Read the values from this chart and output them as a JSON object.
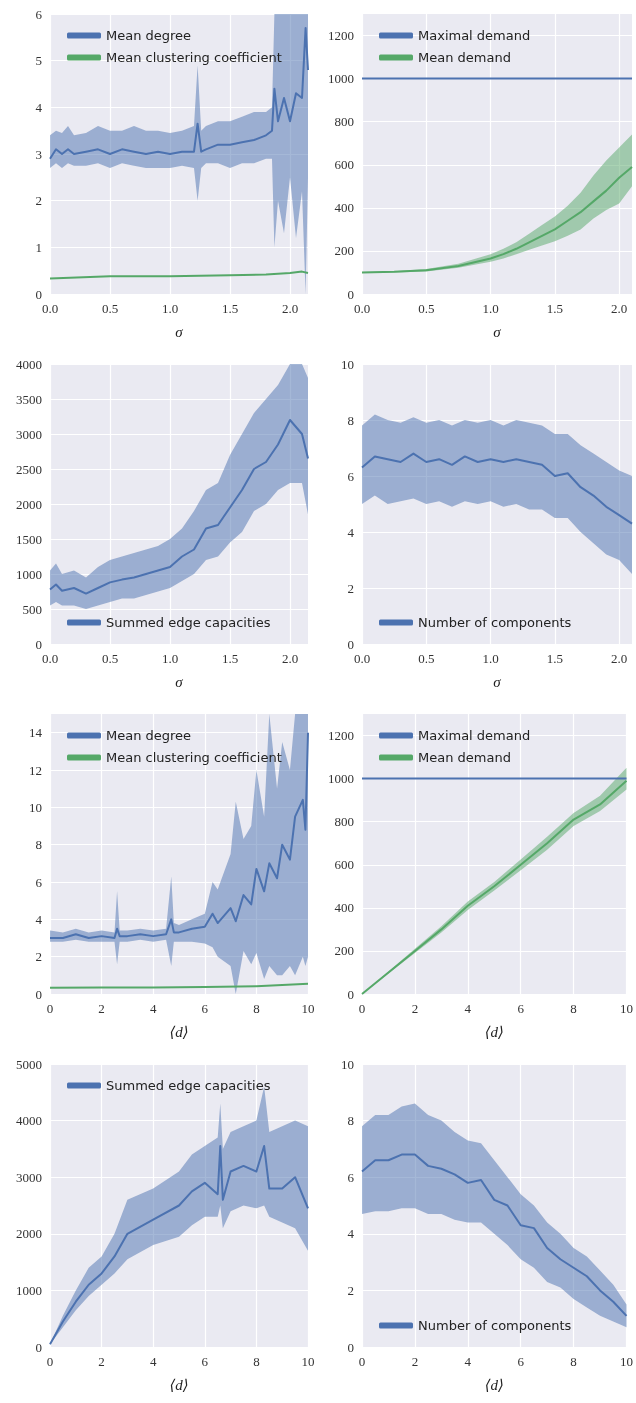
{
  "chart_data": [
    {
      "type": "line",
      "xlabel": "σ",
      "xlim": [
        0,
        2.15
      ],
      "xticks": [
        {
          "value": 0,
          "label": "0.0"
        },
        0.5,
        {
          "value": 1,
          "label": "1.0"
        },
        1.5,
        {
          "value": 2,
          "label": "2.0"
        }
      ],
      "ylim": [
        0,
        6
      ],
      "yticks": [
        0,
        1,
        2,
        3,
        4,
        5,
        6
      ],
      "grid": true,
      "legend": "top left",
      "series": [
        {
          "name": "Mean degree",
          "color": "#4c72b0",
          "x": [
            0,
            0.05,
            0.1,
            0.15,
            0.2,
            0.3,
            0.4,
            0.5,
            0.6,
            0.7,
            0.8,
            0.9,
            1.0,
            1.1,
            1.2,
            1.23,
            1.26,
            1.3,
            1.4,
            1.5,
            1.6,
            1.7,
            1.8,
            1.85,
            1.87,
            1.9,
            1.95,
            2.0,
            2.05,
            2.1,
            2.13,
            2.15
          ],
          "values": [
            2.9,
            3.1,
            3.0,
            3.1,
            3.0,
            3.05,
            3.1,
            3.0,
            3.1,
            3.05,
            3.0,
            3.05,
            3.0,
            3.05,
            3.05,
            3.65,
            3.05,
            3.1,
            3.2,
            3.2,
            3.25,
            3.3,
            3.4,
            3.5,
            4.4,
            3.7,
            4.2,
            3.7,
            4.3,
            4.2,
            5.7,
            4.8
          ],
          "lower": [
            2.7,
            2.8,
            2.7,
            2.8,
            2.75,
            2.75,
            2.8,
            2.7,
            2.8,
            2.75,
            2.7,
            2.7,
            2.7,
            2.75,
            2.7,
            2.0,
            2.7,
            2.8,
            2.8,
            2.7,
            2.8,
            2.8,
            2.9,
            2.9,
            1.0,
            2.0,
            1.3,
            2.5,
            1.2,
            2.2,
            0,
            2.5
          ],
          "upper": [
            3.4,
            3.5,
            3.45,
            3.6,
            3.4,
            3.45,
            3.6,
            3.5,
            3.5,
            3.6,
            3.5,
            3.5,
            3.45,
            3.5,
            3.6,
            4.9,
            3.5,
            3.6,
            3.7,
            3.7,
            3.8,
            3.9,
            3.9,
            4.0,
            6,
            6,
            6,
            6,
            6,
            6,
            6,
            6
          ]
        },
        {
          "name": "Mean clustering coefficient",
          "color": "#55a868",
          "x": [
            0,
            0.5,
            1,
            1.5,
            1.8,
            2.0,
            2.1,
            2.15
          ],
          "values": [
            0.33,
            0.38,
            0.38,
            0.4,
            0.42,
            0.45,
            0.48,
            0.45
          ]
        }
      ]
    },
    {
      "type": "line",
      "xlabel": "σ",
      "xlim": [
        0,
        2.1
      ],
      "xticks": [
        {
          "value": 0,
          "label": "0.0"
        },
        0.5,
        {
          "value": 1,
          "label": "1.0"
        },
        1.5,
        {
          "value": 2,
          "label": "2.0"
        }
      ],
      "ylim": [
        0,
        1300
      ],
      "yticks": [
        0,
        200,
        400,
        600,
        800,
        1000,
        1200
      ],
      "grid": true,
      "legend": "top left",
      "series": [
        {
          "name": "Maximal demand",
          "color": "#4c72b0",
          "x": [
            0,
            2.1
          ],
          "values": [
            1000,
            1000
          ]
        },
        {
          "name": "Mean demand",
          "color": "#55a868",
          "x": [
            0,
            0.25,
            0.5,
            0.75,
            1.0,
            1.1,
            1.2,
            1.3,
            1.4,
            1.5,
            1.6,
            1.7,
            1.8,
            1.9,
            2.0,
            2.1
          ],
          "values": [
            100,
            103,
            110,
            130,
            165,
            185,
            210,
            240,
            270,
            300,
            340,
            380,
            430,
            480,
            540,
            590
          ],
          "lower": [
            98,
            100,
            105,
            122,
            150,
            165,
            185,
            205,
            225,
            245,
            270,
            300,
            350,
            390,
            420,
            500
          ],
          "upper": [
            102,
            106,
            116,
            140,
            185,
            210,
            240,
            280,
            320,
            360,
            410,
            470,
            550,
            620,
            680,
            740
          ]
        }
      ]
    },
    {
      "type": "line",
      "xlabel": "σ",
      "xlim": [
        0,
        2.15
      ],
      "xticks": [
        {
          "value": 0,
          "label": "0.0"
        },
        0.5,
        {
          "value": 1,
          "label": "1.0"
        },
        1.5,
        {
          "value": 2,
          "label": "2.0"
        }
      ],
      "ylim": [
        0,
        4000
      ],
      "yticks": [
        0,
        500,
        1000,
        1500,
        2000,
        2500,
        3000,
        3500,
        4000
      ],
      "grid": true,
      "legend": "bottom left",
      "series": [
        {
          "name": "Summed edge capacities",
          "color": "#4c72b0",
          "x": [
            0,
            0.05,
            0.1,
            0.2,
            0.3,
            0.4,
            0.5,
            0.6,
            0.7,
            0.8,
            0.9,
            1.0,
            1.1,
            1.2,
            1.3,
            1.4,
            1.5,
            1.6,
            1.7,
            1.8,
            1.9,
            2.0,
            2.1,
            2.15
          ],
          "values": [
            780,
            850,
            760,
            800,
            720,
            800,
            880,
            920,
            950,
            1000,
            1050,
            1100,
            1250,
            1350,
            1650,
            1700,
            1950,
            2200,
            2500,
            2600,
            2850,
            3200,
            3000,
            2650
          ],
          "lower": [
            550,
            600,
            550,
            550,
            500,
            550,
            600,
            650,
            650,
            700,
            750,
            800,
            900,
            1000,
            1200,
            1250,
            1450,
            1600,
            1900,
            2000,
            2200,
            2300,
            2300,
            1850
          ],
          "upper": [
            1050,
            1150,
            1000,
            1050,
            950,
            1100,
            1200,
            1250,
            1300,
            1350,
            1400,
            1500,
            1650,
            1900,
            2200,
            2300,
            2700,
            3000,
            3300,
            3500,
            3700,
            4000,
            4000,
            3800
          ]
        }
      ]
    },
    {
      "type": "line",
      "xlabel": "σ",
      "xlim": [
        0,
        2.1
      ],
      "xticks": [
        {
          "value": 0,
          "label": "0.0"
        },
        0.5,
        {
          "value": 1,
          "label": "1.0"
        },
        1.5,
        {
          "value": 2,
          "label": "2.0"
        }
      ],
      "ylim": [
        0,
        10
      ],
      "yticks": [
        0,
        2,
        4,
        6,
        8,
        10
      ],
      "grid": true,
      "legend": "bottom left",
      "series": [
        {
          "name": "Number of components",
          "color": "#4c72b0",
          "x": [
            0,
            0.1,
            0.2,
            0.3,
            0.4,
            0.5,
            0.6,
            0.7,
            0.8,
            0.9,
            1.0,
            1.1,
            1.2,
            1.3,
            1.4,
            1.5,
            1.6,
            1.7,
            1.8,
            1.9,
            2.0,
            2.1
          ],
          "values": [
            6.3,
            6.7,
            6.6,
            6.5,
            6.8,
            6.5,
            6.6,
            6.4,
            6.7,
            6.5,
            6.6,
            6.5,
            6.6,
            6.5,
            6.4,
            6.0,
            6.1,
            5.6,
            5.3,
            4.9,
            4.6,
            4.3
          ],
          "lower": [
            5.0,
            5.3,
            5.0,
            5.1,
            5.2,
            5.0,
            5.1,
            4.9,
            5.1,
            5.0,
            5.1,
            4.9,
            5.0,
            4.8,
            4.8,
            4.5,
            4.5,
            4.0,
            3.6,
            3.2,
            3.0,
            2.5
          ],
          "upper": [
            7.8,
            8.2,
            8.0,
            7.9,
            8.1,
            7.9,
            8.0,
            7.8,
            8.0,
            7.9,
            8.0,
            7.8,
            8.0,
            7.9,
            7.8,
            7.5,
            7.5,
            7.1,
            6.8,
            6.5,
            6.2,
            6.0
          ]
        }
      ]
    },
    {
      "type": "line",
      "xlabel": "⟨d⟩",
      "xlim": [
        0,
        10
      ],
      "xticks": [
        0,
        2,
        4,
        6,
        8,
        10
      ],
      "ylim": [
        0,
        15
      ],
      "yticks": [
        0,
        2,
        4,
        6,
        8,
        10,
        12,
        14
      ],
      "grid": true,
      "legend": "top left",
      "series": [
        {
          "name": "Mean degree",
          "color": "#4c72b0",
          "x": [
            0,
            0.5,
            1,
            1.5,
            2,
            2.5,
            2.6,
            2.7,
            3,
            3.5,
            4,
            4.5,
            4.7,
            4.8,
            5,
            5.5,
            6,
            6.3,
            6.5,
            7,
            7.2,
            7.5,
            7.8,
            8,
            8.3,
            8.5,
            8.8,
            9,
            9.3,
            9.5,
            9.8,
            9.9,
            10
          ],
          "values": [
            3.0,
            3.0,
            3.2,
            3.0,
            3.1,
            3.0,
            3.5,
            3.1,
            3.1,
            3.2,
            3.1,
            3.2,
            4.0,
            3.3,
            3.3,
            3.5,
            3.6,
            4.3,
            3.8,
            4.6,
            3.9,
            5.3,
            4.8,
            6.7,
            5.5,
            7.0,
            6.2,
            8.0,
            7.2,
            9.5,
            10.4,
            8.8,
            14.0
          ],
          "lower": [
            2.8,
            2.8,
            2.9,
            2.8,
            2.8,
            2.8,
            1.6,
            2.8,
            2.8,
            2.9,
            2.8,
            2.9,
            1.5,
            2.8,
            2.8,
            2.8,
            2.7,
            2.5,
            2.0,
            1.5,
            0,
            2.3,
            1.6,
            2.2,
            0.8,
            1.5,
            1.0,
            1.0,
            1.5,
            1.0,
            2.0,
            1.5,
            2.0
          ],
          "upper": [
            3.4,
            3.3,
            3.5,
            3.3,
            3.4,
            3.3,
            5.5,
            3.4,
            3.4,
            3.5,
            3.4,
            3.5,
            6.3,
            3.8,
            3.7,
            4.0,
            4.3,
            6.0,
            5.6,
            7.5,
            10.3,
            8.3,
            9.0,
            12.0,
            9.5,
            15,
            11,
            13.5,
            12,
            15,
            15,
            15,
            15
          ]
        },
        {
          "name": "Mean clustering coefficient",
          "color": "#55a868",
          "x": [
            0,
            2,
            4,
            6,
            8,
            9,
            10
          ],
          "values": [
            0.33,
            0.35,
            0.35,
            0.38,
            0.42,
            0.48,
            0.55
          ]
        }
      ]
    },
    {
      "type": "line",
      "xlabel": "⟨d⟩",
      "xlim": [
        0,
        10
      ],
      "xticks": [
        0,
        2,
        4,
        6,
        8,
        10
      ],
      "ylim": [
        0,
        1300
      ],
      "yticks": [
        0,
        200,
        400,
        600,
        800,
        1000,
        1200
      ],
      "grid": true,
      "legend": "top left",
      "series": [
        {
          "name": "Maximal demand",
          "color": "#4c72b0",
          "x": [
            0,
            10
          ],
          "values": [
            1000,
            1000
          ]
        },
        {
          "name": "Mean demand",
          "color": "#55a868",
          "x": [
            0,
            1,
            2,
            3,
            4,
            5,
            6,
            7,
            8,
            9,
            10
          ],
          "values": [
            0,
            100,
            200,
            300,
            410,
            500,
            600,
            700,
            810,
            880,
            990
          ],
          "lower": [
            0,
            95,
            190,
            285,
            390,
            480,
            575,
            670,
            780,
            850,
            950
          ],
          "upper": [
            0,
            105,
            210,
            315,
            430,
            520,
            625,
            730,
            840,
            920,
            1050
          ]
        }
      ]
    },
    {
      "type": "line",
      "xlabel": "⟨d⟩",
      "xlim": [
        0,
        10
      ],
      "xticks": [
        0,
        2,
        4,
        6,
        8,
        10
      ],
      "ylim": [
        0,
        5000
      ],
      "yticks": [
        0,
        1000,
        2000,
        3000,
        4000,
        5000
      ],
      "grid": true,
      "legend": "top left",
      "series": [
        {
          "name": "Summed edge capacities",
          "color": "#4c72b0",
          "x": [
            0,
            0.5,
            1,
            1.5,
            2,
            2.5,
            3,
            4,
            5,
            5.5,
            6,
            6.5,
            6.6,
            6.7,
            7,
            7.5,
            8,
            8.3,
            8.5,
            9,
            9.5,
            10
          ],
          "values": [
            50,
            450,
            800,
            1100,
            1300,
            1600,
            2000,
            2250,
            2500,
            2750,
            2900,
            2700,
            3550,
            2600,
            3100,
            3200,
            3100,
            3550,
            2800,
            2800,
            3000,
            2450
          ],
          "lower": [
            50,
            350,
            650,
            900,
            1100,
            1300,
            1550,
            1800,
            1950,
            2150,
            2300,
            2300,
            2500,
            2100,
            2400,
            2500,
            2450,
            2500,
            2300,
            2200,
            2100,
            1700
          ],
          "upper": [
            50,
            550,
            1000,
            1400,
            1600,
            2000,
            2600,
            2800,
            3100,
            3400,
            3550,
            3700,
            4300,
            3500,
            3800,
            3900,
            4000,
            4600,
            3800,
            3900,
            4000,
            3900
          ]
        }
      ]
    },
    {
      "type": "line",
      "xlabel": "⟨d⟩",
      "xlim": [
        0,
        10
      ],
      "xticks": [
        0,
        2,
        4,
        6,
        8,
        10
      ],
      "ylim": [
        0,
        10
      ],
      "yticks": [
        0,
        2,
        4,
        6,
        8,
        10
      ],
      "grid": true,
      "legend": "bottom left",
      "series": [
        {
          "name": "Number of components",
          "color": "#4c72b0",
          "x": [
            0,
            0.5,
            1,
            1.5,
            2,
            2.5,
            3,
            3.5,
            4,
            4.5,
            5,
            5.5,
            6,
            6.5,
            7,
            7.5,
            8,
            8.5,
            9,
            9.5,
            10
          ],
          "values": [
            6.2,
            6.6,
            6.6,
            6.8,
            6.8,
            6.4,
            6.3,
            6.1,
            5.8,
            5.9,
            5.2,
            5.0,
            4.3,
            4.2,
            3.5,
            3.1,
            2.8,
            2.5,
            2.0,
            1.6,
            1.1
          ],
          "lower": [
            4.7,
            4.8,
            4.8,
            4.9,
            4.9,
            4.7,
            4.7,
            4.5,
            4.4,
            4.4,
            4.0,
            3.6,
            3.1,
            2.8,
            2.3,
            2.1,
            1.7,
            1.4,
            1.1,
            0.9,
            0.7
          ],
          "upper": [
            7.8,
            8.2,
            8.2,
            8.5,
            8.6,
            8.2,
            8.0,
            7.6,
            7.3,
            7.2,
            6.6,
            6.0,
            5.4,
            5.0,
            4.4,
            4.0,
            3.5,
            3.2,
            2.7,
            2.2,
            1.5
          ]
        }
      ]
    }
  ]
}
